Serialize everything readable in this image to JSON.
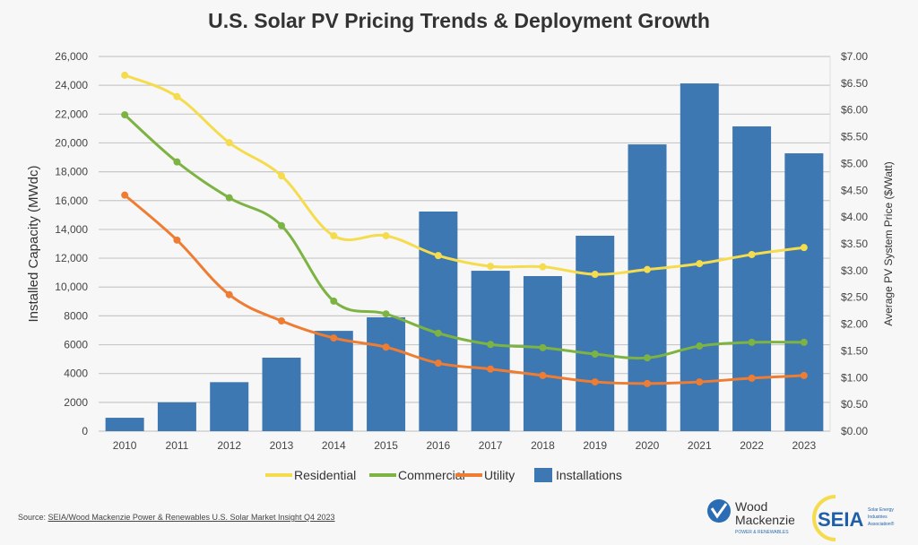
{
  "chart_data": {
    "type": "bar+line",
    "title": "U.S. Solar PV Pricing Trends & Deployment Growth",
    "categories": [
      "2010",
      "2011",
      "2012",
      "2013",
      "2014",
      "2015",
      "2016",
      "2017",
      "2018",
      "2019",
      "2020",
      "2021",
      "2022",
      "2023"
    ],
    "ylabel_left": "Installed Capacity (MWdc)",
    "ylabel_right": "Average PV System Price ($/Watt)",
    "ylim_left": [
      0,
      26000
    ],
    "ylim_right": [
      0,
      7
    ],
    "left_ticks": [
      "0",
      "2000",
      "4000",
      "6000",
      "8000",
      "10,000",
      "12,000",
      "14,000",
      "16,000",
      "18,000",
      "20,000",
      "22,000",
      "24,000",
      "26,000"
    ],
    "right_ticks": [
      "$0.00",
      "$0.50",
      "$1.00",
      "$1.50",
      "$2.00",
      "$2.50",
      "$3.00",
      "$3.50",
      "$4.00",
      "$4.50",
      "$5.00",
      "$5.50",
      "$6.00",
      "$6.50",
      "$7.00"
    ],
    "grid": true,
    "legend_position": "bottom",
    "bars": {
      "name": "Installations",
      "axis": "left",
      "color": "#3e78b2",
      "values": [
        930,
        2000,
        3400,
        5100,
        6960,
        7900,
        15240,
        11130,
        10760,
        13560,
        19900,
        24130,
        21150,
        19280
      ]
    },
    "series": [
      {
        "name": "Residential",
        "axis": "right",
        "color": "#f5dc4e",
        "values": [
          6.65,
          6.25,
          5.39,
          4.77,
          3.65,
          3.65,
          3.28,
          3.08,
          3.07,
          2.93,
          3.02,
          3.13,
          3.3,
          3.43
        ]
      },
      {
        "name": "Commercial",
        "axis": "right",
        "color": "#7cb342",
        "values": [
          5.91,
          5.03,
          4.36,
          3.84,
          2.43,
          2.19,
          1.83,
          1.62,
          1.56,
          1.44,
          1.37,
          1.59,
          1.66,
          1.66
        ]
      },
      {
        "name": "Utility",
        "axis": "right",
        "color": "#ee7d33",
        "values": [
          4.41,
          3.57,
          2.55,
          2.06,
          1.74,
          1.57,
          1.27,
          1.16,
          1.04,
          0.92,
          0.89,
          0.92,
          0.99,
          1.04
        ]
      }
    ]
  },
  "footer": {
    "source_prefix": "Source: ",
    "source_link": "SEIA/Wood Mackenzie Power & Renewables U.S. Solar Market Insight Q4 2023",
    "logo_wm": "Wood Mackenzie POWER & RENEWABLES",
    "logo_seia": "SEIA Solar Energy Industries Association"
  }
}
